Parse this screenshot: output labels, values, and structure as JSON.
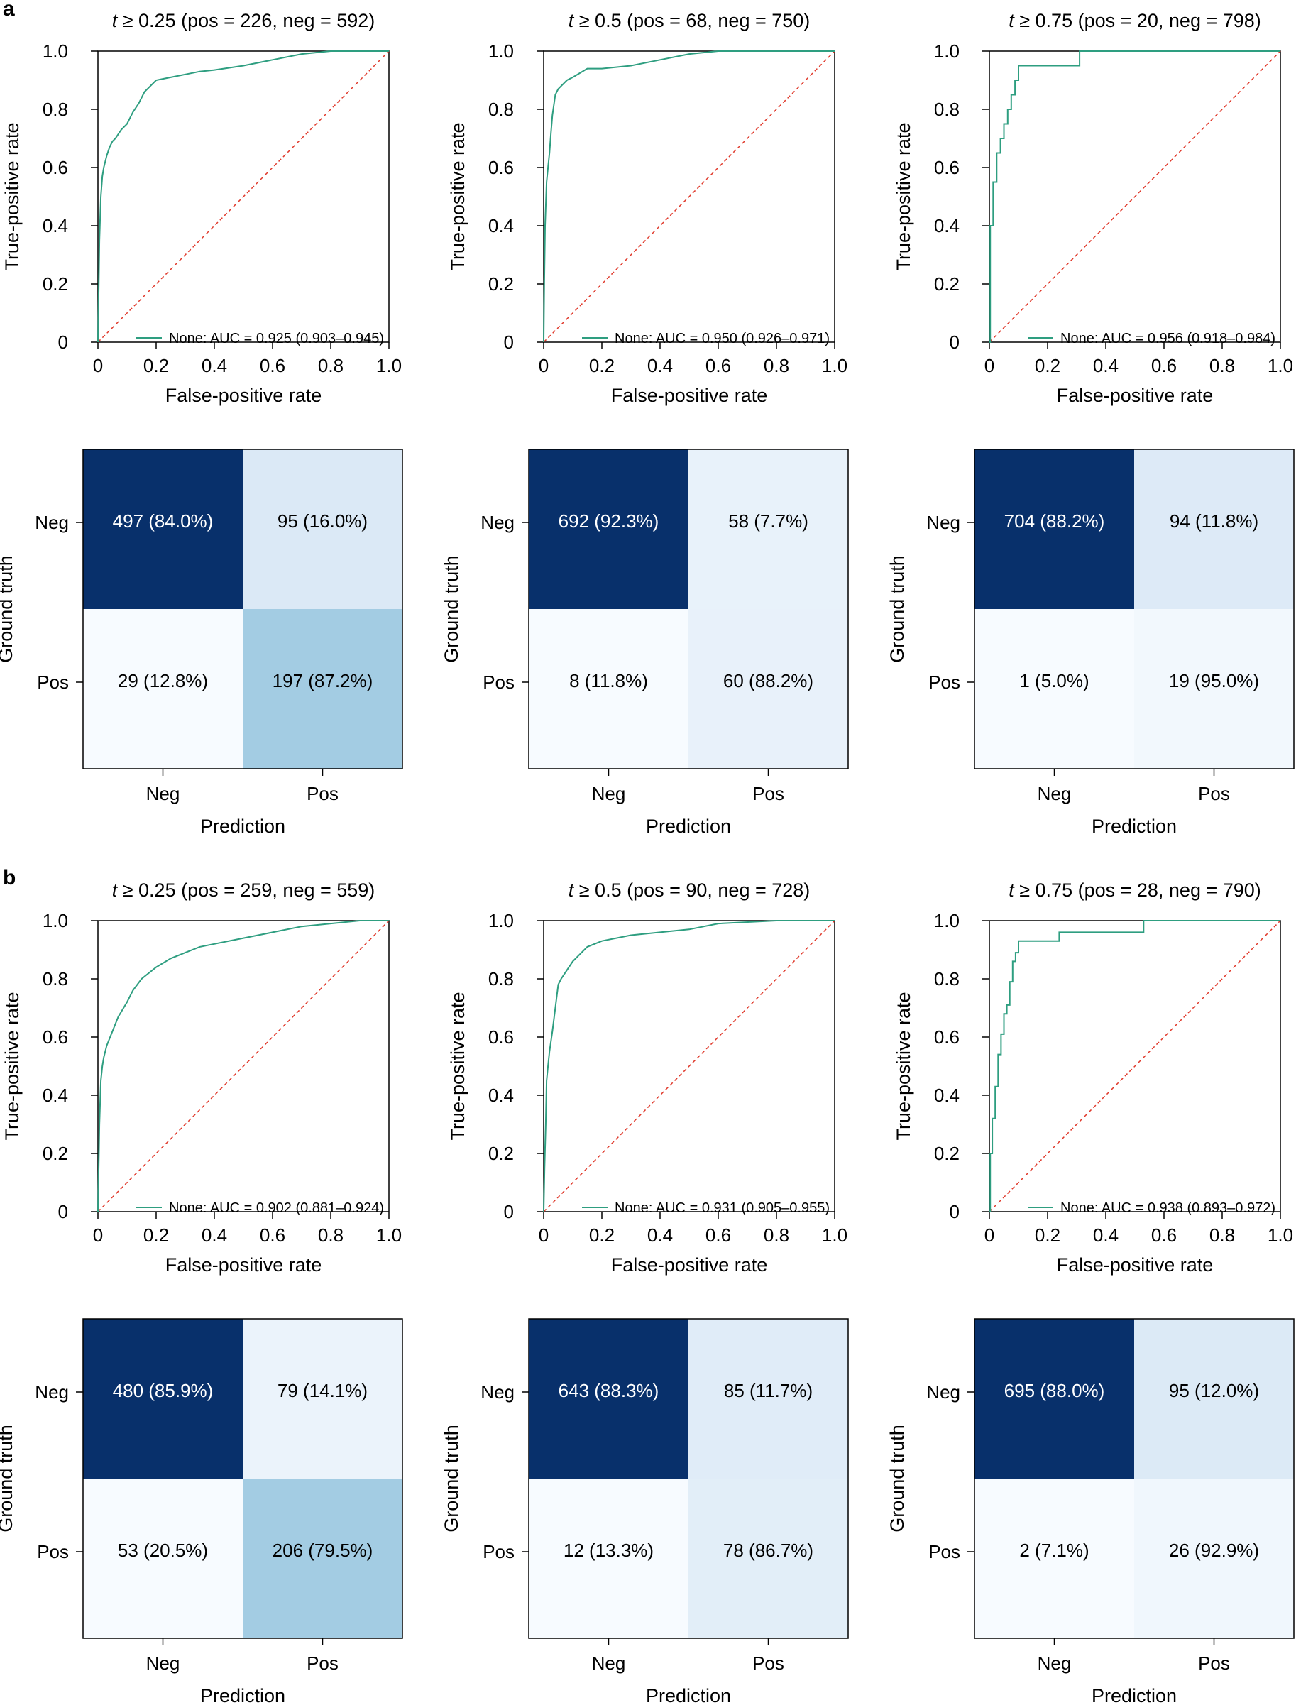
{
  "panel_labels": {
    "a": "a",
    "b": "b"
  },
  "colors": {
    "roc": "#2e9e80",
    "diagonal": "#e0392b",
    "axis": "#000000"
  },
  "chart_data": [
    {
      "type": "line",
      "panel": "a",
      "title": {
        "t": "t",
        "rest": " ≥ 0.25 (pos = 226, neg = 592)"
      },
      "xlabel": "False-positive rate",
      "ylabel": "True-positive rate",
      "xlim": [
        0,
        1
      ],
      "ylim": [
        0,
        1
      ],
      "x_ticks": [
        "0",
        "0.2",
        "0.4",
        "0.6",
        "0.8",
        "1.0"
      ],
      "y_ticks": [
        "0",
        "0.2",
        "0.4",
        "0.6",
        "0.8",
        "1.0"
      ],
      "legend": {
        "label": "None: AUC = 0.925 (0.903–0.945)",
        "position": "bottom-right"
      },
      "series": [
        {
          "name": "None",
          "x": [
            0,
            0.005,
            0.01,
            0.015,
            0.02,
            0.03,
            0.04,
            0.05,
            0.06,
            0.08,
            0.1,
            0.12,
            0.14,
            0.16,
            0.2,
            0.25,
            0.3,
            0.35,
            0.4,
            0.5,
            0.6,
            0.7,
            0.8,
            0.9,
            1.0
          ],
          "y": [
            0,
            0.35,
            0.5,
            0.57,
            0.6,
            0.64,
            0.67,
            0.69,
            0.7,
            0.73,
            0.75,
            0.79,
            0.82,
            0.86,
            0.9,
            0.91,
            0.92,
            0.93,
            0.935,
            0.95,
            0.97,
            0.99,
            1.0,
            1.0,
            1.0
          ]
        },
        {
          "name": "Chance",
          "x": [
            0,
            1
          ],
          "y": [
            0,
            1
          ]
        }
      ]
    },
    {
      "type": "line",
      "panel": "a",
      "title": {
        "t": "t",
        "rest": " ≥ 0.5 (pos = 68, neg = 750)"
      },
      "xlabel": "False-positive rate",
      "ylabel": "True-positive rate",
      "xlim": [
        0,
        1
      ],
      "ylim": [
        0,
        1
      ],
      "x_ticks": [
        "0",
        "0.2",
        "0.4",
        "0.6",
        "0.8",
        "1.0"
      ],
      "y_ticks": [
        "0",
        "0.2",
        "0.4",
        "0.6",
        "0.8",
        "1.0"
      ],
      "legend": {
        "label": "None: AUC = 0.950 (0.926–0.971)",
        "position": "bottom-right"
      },
      "series": [
        {
          "name": "None",
          "x": [
            0,
            0.002,
            0.005,
            0.01,
            0.015,
            0.02,
            0.025,
            0.03,
            0.04,
            0.05,
            0.06,
            0.08,
            0.1,
            0.15,
            0.2,
            0.3,
            0.4,
            0.5,
            0.6,
            0.8,
            1.0
          ],
          "y": [
            0,
            0.2,
            0.4,
            0.55,
            0.6,
            0.65,
            0.72,
            0.78,
            0.85,
            0.87,
            0.88,
            0.9,
            0.91,
            0.94,
            0.94,
            0.95,
            0.97,
            0.99,
            1.0,
            1.0,
            1.0
          ]
        },
        {
          "name": "Chance",
          "x": [
            0,
            1
          ],
          "y": [
            0,
            1
          ]
        }
      ]
    },
    {
      "type": "line",
      "panel": "a",
      "title": {
        "t": "t",
        "rest": " ≥ 0.75 (pos = 20, neg = 798)"
      },
      "xlabel": "False-positive rate",
      "ylabel": "True-positive rate",
      "xlim": [
        0,
        1
      ],
      "ylim": [
        0,
        1
      ],
      "x_ticks": [
        "0",
        "0.2",
        "0.4",
        "0.6",
        "0.8",
        "1.0"
      ],
      "y_ticks": [
        "0",
        "0.2",
        "0.4",
        "0.6",
        "0.8",
        "1.0"
      ],
      "legend": {
        "label": "None: AUC = 0.956 (0.918–0.984)",
        "position": "bottom-right"
      },
      "series": [
        {
          "name": "None",
          "x": [
            0,
            0.003,
            0.003,
            0.013,
            0.013,
            0.025,
            0.025,
            0.038,
            0.038,
            0.05,
            0.05,
            0.063,
            0.063,
            0.075,
            0.075,
            0.088,
            0.088,
            0.1,
            0.1,
            0.113,
            0.113,
            0.31,
            0.31,
            1.0
          ],
          "y": [
            0,
            0,
            0.4,
            0.4,
            0.55,
            0.55,
            0.65,
            0.65,
            0.7,
            0.7,
            0.75,
            0.75,
            0.8,
            0.8,
            0.85,
            0.85,
            0.9,
            0.9,
            0.95,
            0.95,
            0.95,
            0.95,
            1.0,
            1.0
          ]
        },
        {
          "name": "Chance",
          "x": [
            0,
            1
          ],
          "y": [
            0,
            1
          ]
        }
      ]
    },
    {
      "type": "heatmap",
      "panel": "a",
      "xlabel": "Prediction",
      "ylabel": "Ground truth",
      "x_categories": [
        "Neg",
        "Pos"
      ],
      "y_categories": [
        "Neg",
        "Pos"
      ],
      "values": [
        [
          497,
          95
        ],
        [
          29,
          197
        ]
      ],
      "cell_labels": [
        [
          "497 (84.0%)",
          "95 (16.0%)"
        ],
        [
          "29 (12.8%)",
          "197 (87.2%)"
        ]
      ],
      "row_fractions": [
        [
          0.84,
          0.16
        ],
        [
          0.128,
          0.872
        ]
      ]
    },
    {
      "type": "heatmap",
      "panel": "a",
      "xlabel": "Prediction",
      "ylabel": "Ground truth",
      "x_categories": [
        "Neg",
        "Pos"
      ],
      "y_categories": [
        "Neg",
        "Pos"
      ],
      "values": [
        [
          692,
          58
        ],
        [
          8,
          60
        ]
      ],
      "cell_labels": [
        [
          "692 (92.3%)",
          "58 (7.7%)"
        ],
        [
          "8 (11.8%)",
          "60 (88.2%)"
        ]
      ],
      "row_fractions": [
        [
          0.923,
          0.077
        ],
        [
          0.118,
          0.882
        ]
      ]
    },
    {
      "type": "heatmap",
      "panel": "a",
      "xlabel": "Prediction",
      "ylabel": "Ground truth",
      "x_categories": [
        "Neg",
        "Pos"
      ],
      "y_categories": [
        "Neg",
        "Pos"
      ],
      "values": [
        [
          704,
          94
        ],
        [
          1,
          19
        ]
      ],
      "cell_labels": [
        [
          "704 (88.2%)",
          "94 (11.8%)"
        ],
        [
          "1 (5.0%)",
          "19 (95.0%)"
        ]
      ],
      "row_fractions": [
        [
          0.882,
          0.118
        ],
        [
          0.05,
          0.95
        ]
      ]
    },
    {
      "type": "line",
      "panel": "b",
      "title": {
        "t": "t",
        "rest": " ≥ 0.25 (pos = 259, neg = 559)"
      },
      "xlabel": "False-positive rate",
      "ylabel": "True-positive rate",
      "xlim": [
        0,
        1
      ],
      "ylim": [
        0,
        1
      ],
      "x_ticks": [
        "0",
        "0.2",
        "0.4",
        "0.6",
        "0.8",
        "1.0"
      ],
      "y_ticks": [
        "0",
        "0.2",
        "0.4",
        "0.6",
        "0.8",
        "1.0"
      ],
      "legend": {
        "label": "None: AUC = 0.902 (0.881–0.924)",
        "position": "bottom-right"
      },
      "series": [
        {
          "name": "None",
          "x": [
            0,
            0.005,
            0.01,
            0.015,
            0.02,
            0.03,
            0.05,
            0.07,
            0.1,
            0.12,
            0.15,
            0.2,
            0.25,
            0.3,
            0.35,
            0.4,
            0.5,
            0.6,
            0.7,
            0.8,
            0.9,
            1.0
          ],
          "y": [
            0,
            0.3,
            0.45,
            0.5,
            0.53,
            0.57,
            0.62,
            0.67,
            0.72,
            0.76,
            0.8,
            0.84,
            0.87,
            0.89,
            0.91,
            0.92,
            0.94,
            0.96,
            0.98,
            0.99,
            1.0,
            1.0
          ]
        },
        {
          "name": "Chance",
          "x": [
            0,
            1
          ],
          "y": [
            0,
            1
          ]
        }
      ]
    },
    {
      "type": "line",
      "panel": "b",
      "title": {
        "t": "t",
        "rest": " ≥ 0.5 (pos = 90, neg = 728)"
      },
      "xlabel": "False-positive rate",
      "ylabel": "True-positive rate",
      "xlim": [
        0,
        1
      ],
      "ylim": [
        0,
        1
      ],
      "x_ticks": [
        "0",
        "0.2",
        "0.4",
        "0.6",
        "0.8",
        "1.0"
      ],
      "y_ticks": [
        "0",
        "0.2",
        "0.4",
        "0.6",
        "0.8",
        "1.0"
      ],
      "legend": {
        "label": "None: AUC = 0.931 (0.905–0.955)",
        "position": "bottom-right"
      },
      "series": [
        {
          "name": "None",
          "x": [
            0,
            0.003,
            0.007,
            0.01,
            0.015,
            0.02,
            0.03,
            0.04,
            0.05,
            0.06,
            0.08,
            0.1,
            0.12,
            0.15,
            0.2,
            0.3,
            0.4,
            0.5,
            0.6,
            0.8,
            1.0
          ],
          "y": [
            0,
            0.15,
            0.3,
            0.45,
            0.5,
            0.55,
            0.62,
            0.7,
            0.78,
            0.8,
            0.83,
            0.86,
            0.88,
            0.91,
            0.93,
            0.95,
            0.96,
            0.97,
            0.99,
            1.0,
            1.0
          ]
        },
        {
          "name": "Chance",
          "x": [
            0,
            1
          ],
          "y": [
            0,
            1
          ]
        }
      ]
    },
    {
      "type": "line",
      "panel": "b",
      "title": {
        "t": "t",
        "rest": " ≥ 0.75 (pos = 28, neg = 790)"
      },
      "xlabel": "False-positive rate",
      "ylabel": "True-positive rate",
      "xlim": [
        0,
        1
      ],
      "ylim": [
        0,
        1
      ],
      "x_ticks": [
        "0",
        "0.2",
        "0.4",
        "0.6",
        "0.8",
        "1.0"
      ],
      "y_ticks": [
        "0",
        "0.2",
        "0.4",
        "0.6",
        "0.8",
        "1.0"
      ],
      "legend": {
        "label": "None: AUC = 0.938 (0.893–0.972)",
        "position": "bottom-right"
      },
      "series": [
        {
          "name": "None",
          "x": [
            0,
            0.003,
            0.003,
            0.01,
            0.01,
            0.02,
            0.02,
            0.03,
            0.03,
            0.04,
            0.04,
            0.05,
            0.05,
            0.06,
            0.06,
            0.07,
            0.07,
            0.08,
            0.08,
            0.09,
            0.09,
            0.1,
            0.1,
            0.11,
            0.11,
            0.24,
            0.24,
            0.53,
            0.53,
            1.0
          ],
          "y": [
            0,
            0,
            0.2,
            0.2,
            0.32,
            0.32,
            0.43,
            0.43,
            0.54,
            0.54,
            0.61,
            0.61,
            0.68,
            0.68,
            0.71,
            0.71,
            0.79,
            0.79,
            0.86,
            0.86,
            0.89,
            0.89,
            0.93,
            0.93,
            0.93,
            0.93,
            0.96,
            0.96,
            1.0,
            1.0
          ]
        },
        {
          "name": "Chance",
          "x": [
            0,
            1
          ],
          "y": [
            0,
            1
          ]
        }
      ]
    },
    {
      "type": "heatmap",
      "panel": "b",
      "xlabel": "Prediction",
      "ylabel": "Ground truth",
      "x_categories": [
        "Neg",
        "Pos"
      ],
      "y_categories": [
        "Neg",
        "Pos"
      ],
      "values": [
        [
          480,
          79
        ],
        [
          53,
          206
        ]
      ],
      "cell_labels": [
        [
          "480 (85.9%)",
          "79 (14.1%)"
        ],
        [
          "53 (20.5%)",
          "206 (79.5%)"
        ]
      ],
      "row_fractions": [
        [
          0.859,
          0.141
        ],
        [
          0.205,
          0.795
        ]
      ]
    },
    {
      "type": "heatmap",
      "panel": "b",
      "xlabel": "Prediction",
      "ylabel": "Ground truth",
      "x_categories": [
        "Neg",
        "Pos"
      ],
      "y_categories": [
        "Neg",
        "Pos"
      ],
      "values": [
        [
          643,
          85
        ],
        [
          12,
          78
        ]
      ],
      "cell_labels": [
        [
          "643 (88.3%)",
          "85 (11.7%)"
        ],
        [
          "12 (13.3%)",
          "78 (86.7%)"
        ]
      ],
      "row_fractions": [
        [
          0.883,
          0.117
        ],
        [
          0.133,
          0.867
        ]
      ]
    },
    {
      "type": "heatmap",
      "panel": "b",
      "xlabel": "Prediction",
      "ylabel": "Ground truth",
      "x_categories": [
        "Neg",
        "Pos"
      ],
      "y_categories": [
        "Neg",
        "Pos"
      ],
      "values": [
        [
          695,
          95
        ],
        [
          2,
          26
        ]
      ],
      "cell_labels": [
        [
          "695 (88.0%)",
          "95 (12.0%)"
        ],
        [
          "2 (7.1%)",
          "26 (92.9%)"
        ]
      ],
      "row_fractions": [
        [
          0.88,
          0.12
        ],
        [
          0.071,
          0.929
        ]
      ]
    }
  ]
}
